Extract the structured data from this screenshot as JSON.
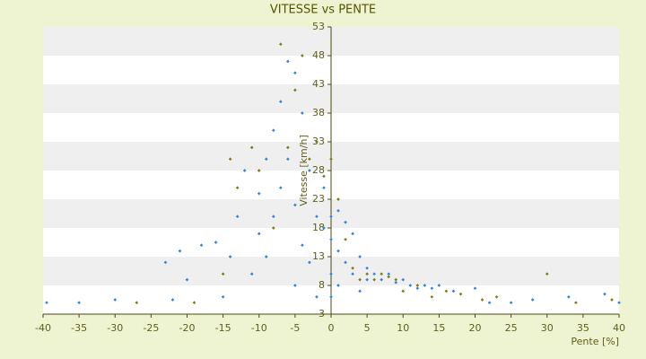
{
  "chart_data": {
    "type": "scatter",
    "title": "VITESSE vs PENTE",
    "x_label": "Pente [%]",
    "y_label": "Vitesse [km/h]",
    "xlim": [
      -40,
      40
    ],
    "xticks": [
      -40,
      -35,
      -30,
      -25,
      -20,
      -15,
      -10,
      -5,
      0,
      5,
      10,
      15,
      20,
      25,
      30,
      35,
      40
    ],
    "ylim": [
      3,
      53
    ],
    "yticks": [
      3,
      8,
      13,
      18,
      23,
      28,
      33,
      38,
      43,
      48,
      53
    ],
    "banded_background": true,
    "series": [
      {
        "color": "#2e86d6",
        "x": [
          -39.5,
          -35,
          -30,
          -23,
          -22,
          -21,
          -20,
          -18,
          -16,
          -15,
          -14,
          -13,
          -12,
          -11,
          -10,
          -10,
          -9,
          -9,
          -8,
          -8,
          -7,
          -7,
          -6,
          -6,
          -5,
          -5,
          -5,
          -4,
          -4,
          -3,
          -3,
          -2,
          -2,
          -1,
          -1,
          0,
          0,
          0,
          0,
          1,
          1,
          1,
          2,
          2,
          3,
          3,
          4,
          4,
          5,
          5,
          6,
          7,
          8,
          9,
          10,
          11,
          12,
          13,
          14,
          15,
          17,
          20,
          22,
          25,
          28,
          33,
          38,
          40
        ],
        "values": [
          5,
          5,
          5.5,
          12,
          5.5,
          14,
          9,
          15,
          15.5,
          6,
          13,
          20,
          28,
          10,
          24,
          17,
          30,
          13,
          35,
          20,
          25,
          40,
          47,
          30,
          45,
          22,
          8,
          38,
          15,
          28,
          12,
          20,
          6,
          18,
          25,
          20,
          16,
          10,
          6,
          21,
          14,
          8,
          19,
          12,
          17,
          10,
          13,
          7,
          11,
          9,
          10,
          9,
          10,
          8.5,
          9,
          8,
          7.5,
          8,
          7.5,
          8,
          7,
          7.5,
          5,
          5,
          5.5,
          6,
          6.5,
          5
        ]
      },
      {
        "color": "#7d7d12",
        "x": [
          -27,
          -19,
          -15,
          -14,
          -13,
          -11,
          -10,
          -8,
          -7,
          -6,
          -5,
          -4,
          -3,
          -2,
          -1,
          0,
          1,
          2,
          3,
          4,
          5,
          6,
          7,
          8,
          9,
          10,
          12,
          14,
          16,
          18,
          21,
          23,
          30,
          34,
          39
        ],
        "values": [
          5,
          5,
          10,
          30,
          25,
          32,
          28,
          18,
          50,
          32,
          42,
          48,
          30,
          33,
          27,
          30,
          23,
          16,
          11,
          9,
          10,
          9,
          10,
          9.5,
          9,
          7,
          8,
          6,
          7,
          6.5,
          5.5,
          6,
          10,
          5,
          5.5
        ]
      }
    ]
  }
}
